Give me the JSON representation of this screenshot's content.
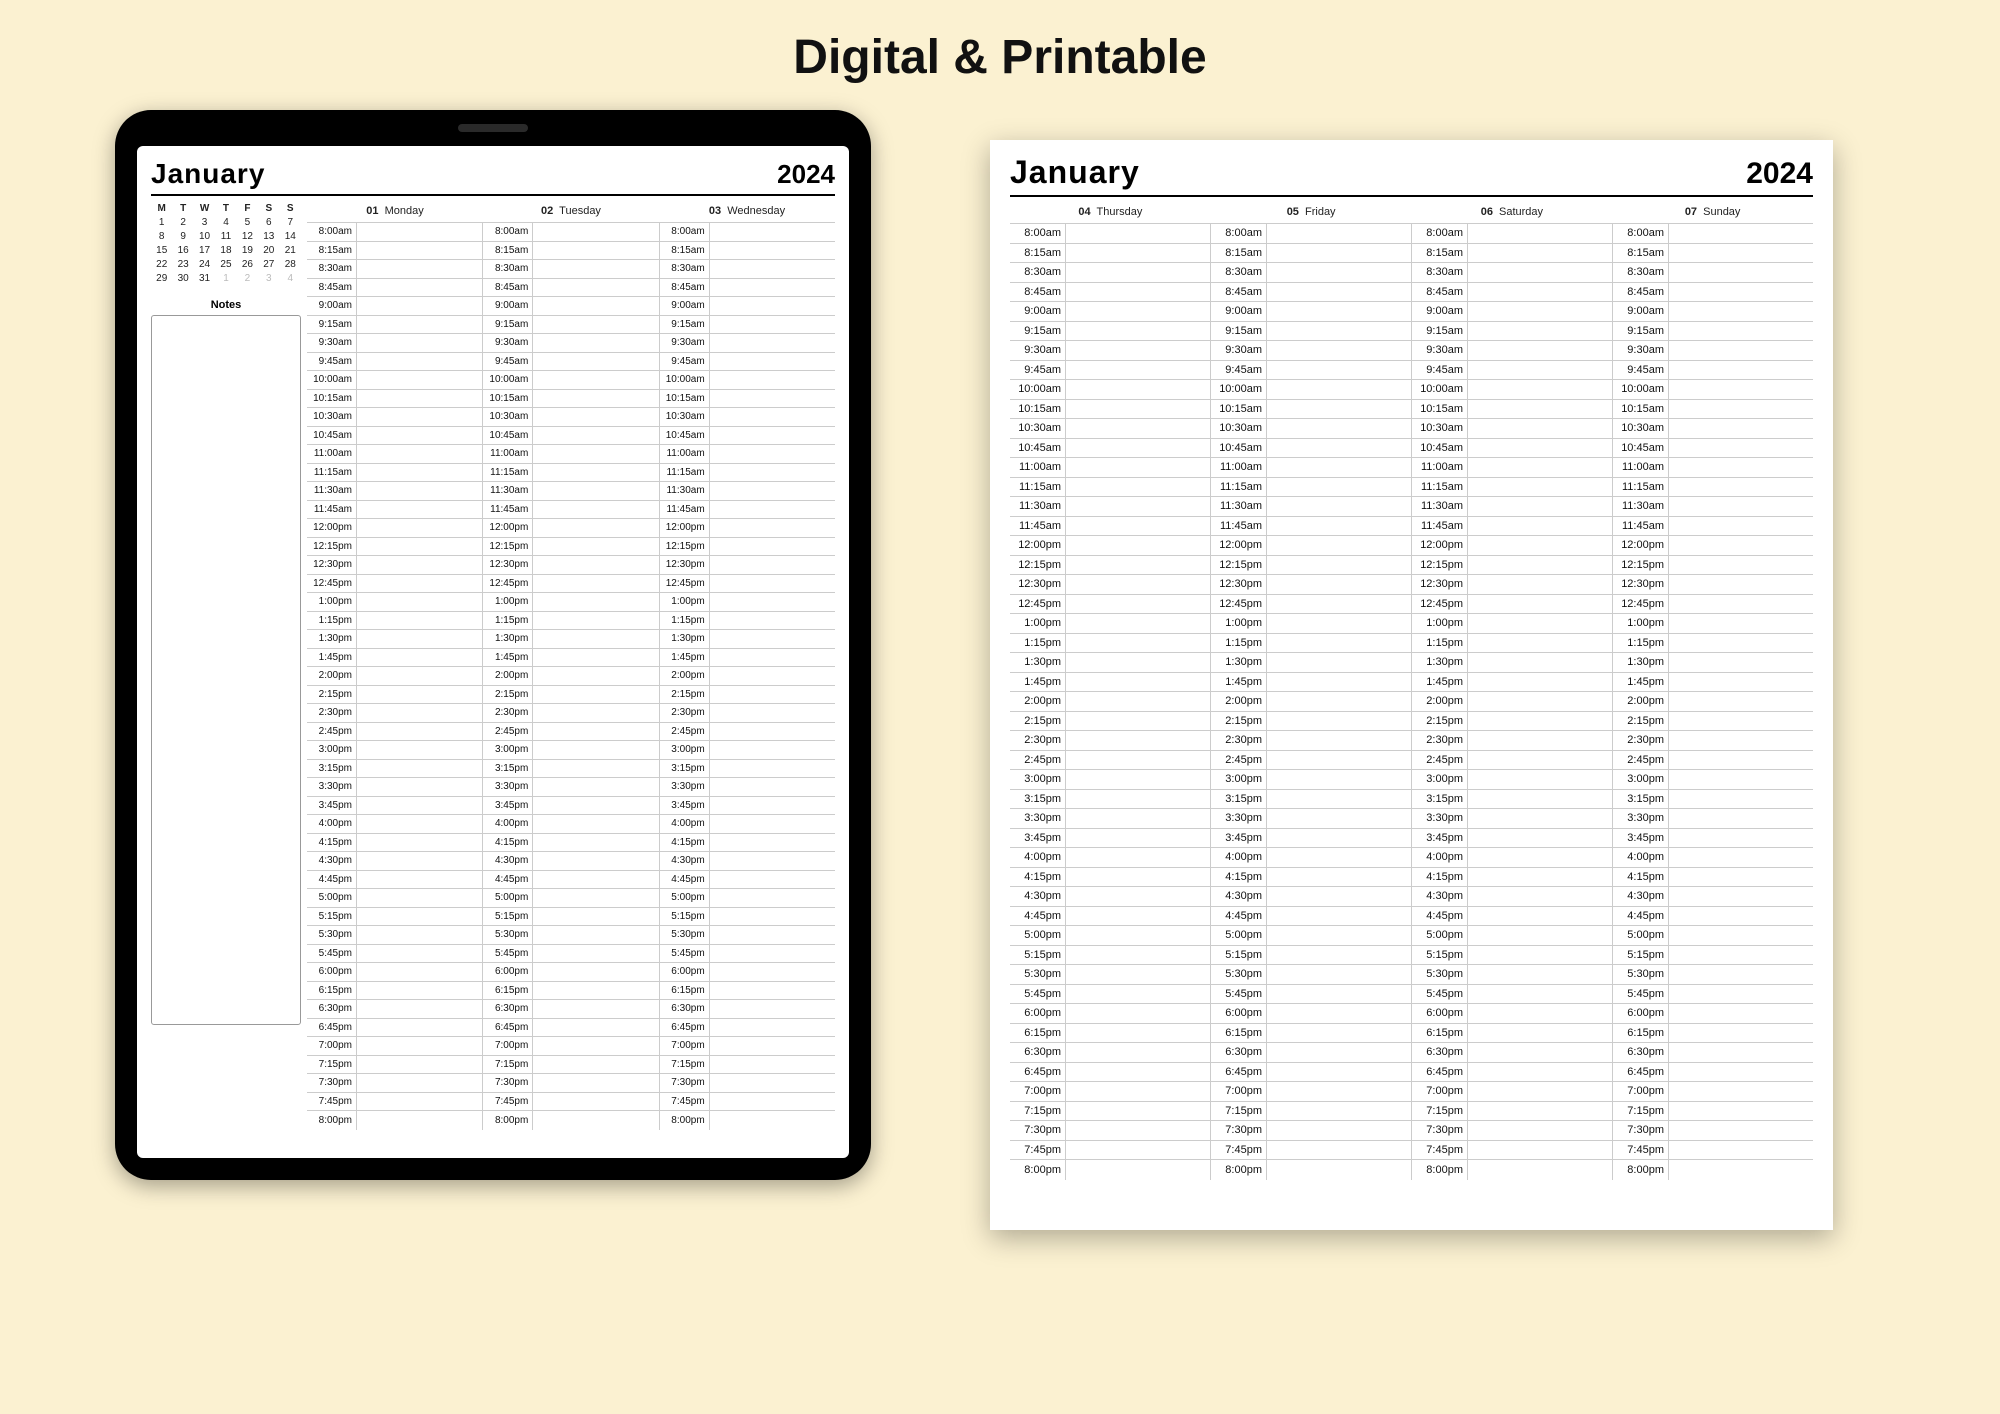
{
  "title": "Digital & Printable",
  "planner": {
    "month": "January",
    "year": "2024",
    "notes_label": "Notes",
    "mini_cal": {
      "dow": [
        "M",
        "T",
        "W",
        "T",
        "F",
        "S",
        "S"
      ],
      "weeks": [
        [
          {
            "d": "1"
          },
          {
            "d": "2"
          },
          {
            "d": "3"
          },
          {
            "d": "4"
          },
          {
            "d": "5"
          },
          {
            "d": "6"
          },
          {
            "d": "7"
          }
        ],
        [
          {
            "d": "8"
          },
          {
            "d": "9"
          },
          {
            "d": "10"
          },
          {
            "d": "11"
          },
          {
            "d": "12"
          },
          {
            "d": "13"
          },
          {
            "d": "14"
          }
        ],
        [
          {
            "d": "15"
          },
          {
            "d": "16"
          },
          {
            "d": "17"
          },
          {
            "d": "18"
          },
          {
            "d": "19"
          },
          {
            "d": "20"
          },
          {
            "d": "21"
          }
        ],
        [
          {
            "d": "22"
          },
          {
            "d": "23"
          },
          {
            "d": "24"
          },
          {
            "d": "25"
          },
          {
            "d": "26"
          },
          {
            "d": "27"
          },
          {
            "d": "28"
          }
        ],
        [
          {
            "d": "29"
          },
          {
            "d": "30"
          },
          {
            "d": "31"
          },
          {
            "d": "1",
            "fade": true
          },
          {
            "d": "2",
            "fade": true
          },
          {
            "d": "3",
            "fade": true
          },
          {
            "d": "4",
            "fade": true
          }
        ]
      ]
    },
    "left_days": [
      {
        "num": "01",
        "name": "Monday"
      },
      {
        "num": "02",
        "name": "Tuesday"
      },
      {
        "num": "03",
        "name": "Wednesday"
      }
    ],
    "right_days": [
      {
        "num": "04",
        "name": "Thursday"
      },
      {
        "num": "05",
        "name": "Friday"
      },
      {
        "num": "06",
        "name": "Saturday"
      },
      {
        "num": "07",
        "name": "Sunday"
      }
    ],
    "time_slots": [
      "8:00am",
      "8:15am",
      "8:30am",
      "8:45am",
      "9:00am",
      "9:15am",
      "9:30am",
      "9:45am",
      "10:00am",
      "10:15am",
      "10:30am",
      "10:45am",
      "11:00am",
      "11:15am",
      "11:30am",
      "11:45am",
      "12:00pm",
      "12:15pm",
      "12:30pm",
      "12:45pm",
      "1:00pm",
      "1:15pm",
      "1:30pm",
      "1:45pm",
      "2:00pm",
      "2:15pm",
      "2:30pm",
      "2:45pm",
      "3:00pm",
      "3:15pm",
      "3:30pm",
      "3:45pm",
      "4:00pm",
      "4:15pm",
      "4:30pm",
      "4:45pm",
      "5:00pm",
      "5:15pm",
      "5:30pm",
      "5:45pm",
      "6:00pm",
      "6:15pm",
      "6:30pm",
      "6:45pm",
      "7:00pm",
      "7:15pm",
      "7:30pm",
      "7:45pm",
      "8:00pm"
    ]
  },
  "colors": {
    "background": "#fbf1d1",
    "page": "#ffffff",
    "line": "#cccccc",
    "text": "#111111",
    "fade": "#bbbbbb"
  }
}
